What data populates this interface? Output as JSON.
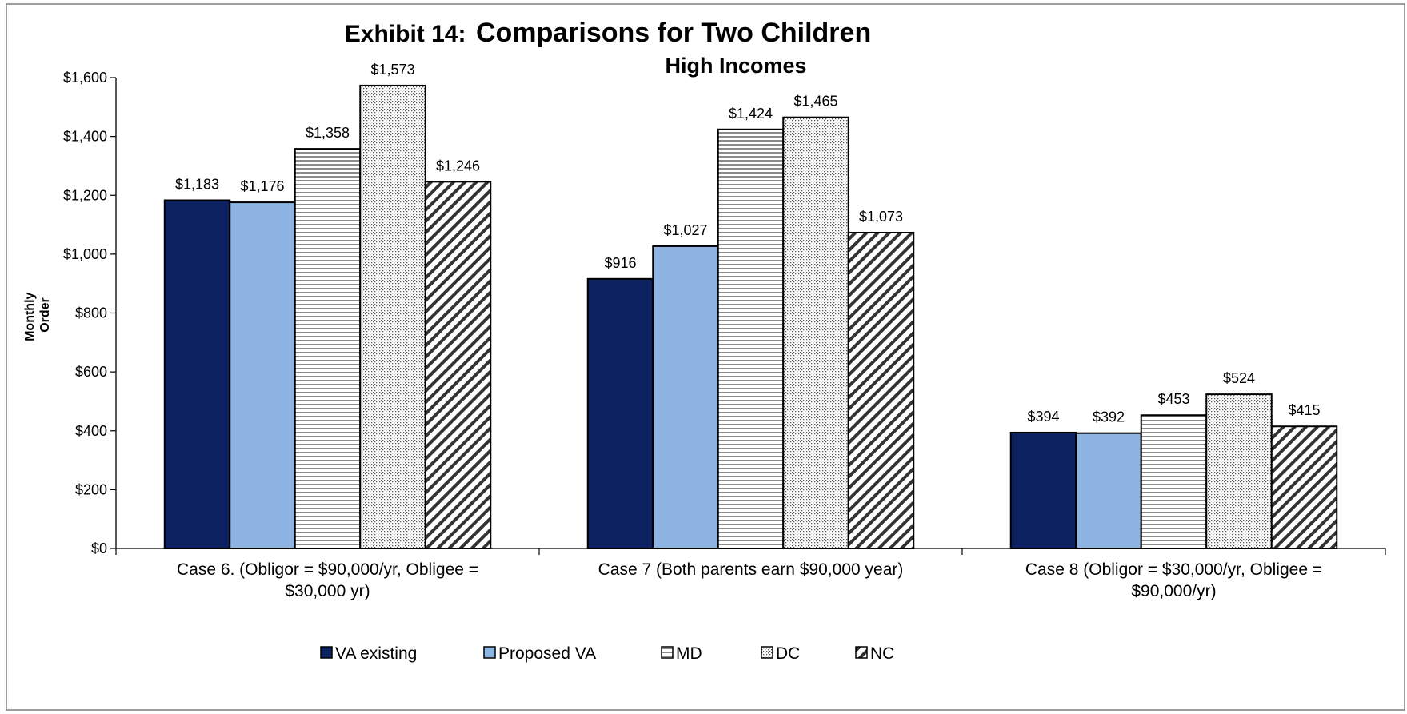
{
  "chart_data": {
    "type": "bar",
    "title_prefix": "Exhibit 14:",
    "title": "Comparisons for Two Children",
    "subtitle": "High Incomes",
    "ylabel_lines": [
      "Monthly",
      "Order"
    ],
    "xlabel": "",
    "ylim": [
      0,
      1600
    ],
    "ytick_step": 200,
    "y_ticks": [
      "$0",
      "$200",
      "$400",
      "$600",
      "$800",
      "$1,000",
      "$1,200",
      "$1,400",
      "$1,600"
    ],
    "grid": false,
    "legend_position": "bottom",
    "categories": [
      [
        "Case 6. (Obligor = $90,000/yr, Obligee =",
        "$30,000 yr)"
      ],
      [
        "Case 7 (Both parents earn $90,000 year)"
      ],
      [
        "Case 8 (Obligor = $30,000/yr, Obligee =",
        "$90,000/yr)"
      ]
    ],
    "series": [
      {
        "name": "VA existing",
        "values": [
          1183,
          916,
          394
        ],
        "labels": [
          "$1,183",
          "$916",
          "$394"
        ],
        "fill": "solid",
        "color": "#0b2160"
      },
      {
        "name": "Proposed VA",
        "values": [
          1176,
          1027,
          392
        ],
        "labels": [
          "$1,176",
          "$1,027",
          "$392"
        ],
        "fill": "solid",
        "color": "#8eb4e3"
      },
      {
        "name": "MD",
        "values": [
          1358,
          1424,
          453
        ],
        "labels": [
          "$1,358",
          "$1,424",
          "$453"
        ],
        "fill": "horizontal-lines",
        "color": "#ffffff"
      },
      {
        "name": "DC",
        "values": [
          1573,
          1465,
          524
        ],
        "labels": [
          "$1,573",
          "$1,465",
          "$524"
        ],
        "fill": "dots",
        "color": "#ffffff"
      },
      {
        "name": "NC",
        "values": [
          1246,
          1073,
          415
        ],
        "labels": [
          "$1,246",
          "$1,073",
          "$415"
        ],
        "fill": "diagonal-lines",
        "color": "#ffffff"
      }
    ]
  }
}
